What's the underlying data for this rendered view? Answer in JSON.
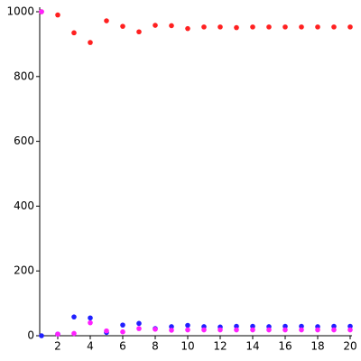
{
  "chart_data": {
    "type": "scatter",
    "x": [
      1,
      2,
      3,
      4,
      5,
      6,
      7,
      8,
      9,
      10,
      11,
      12,
      13,
      14,
      15,
      16,
      17,
      18,
      19,
      20
    ],
    "series": [
      {
        "color": "#ff2020",
        "values": [
          1000,
          990,
          935,
          905,
          972,
          955,
          938,
          958,
          957,
          948,
          953,
          953,
          951,
          953,
          953,
          953,
          953,
          953,
          953,
          953
        ]
      },
      {
        "color": "#2020ff",
        "values": [
          0,
          5,
          58,
          55,
          10,
          33,
          38,
          22,
          28,
          32,
          28,
          27,
          29,
          29,
          28,
          29,
          29,
          28,
          29,
          29
        ]
      },
      {
        "color": "#ff20ff",
        "values": [
          1000,
          5,
          7,
          40,
          15,
          12,
          22,
          20,
          17,
          18,
          18,
          18,
          18,
          18,
          18,
          18,
          18,
          18,
          18,
          18
        ]
      }
    ],
    "xlim": [
      1,
      20
    ],
    "ylim": [
      0,
      1000
    ],
    "xticks": [
      2,
      4,
      6,
      8,
      10,
      12,
      14,
      16,
      18,
      20
    ],
    "yticks": [
      0,
      200,
      400,
      600,
      800,
      1000
    ]
  }
}
